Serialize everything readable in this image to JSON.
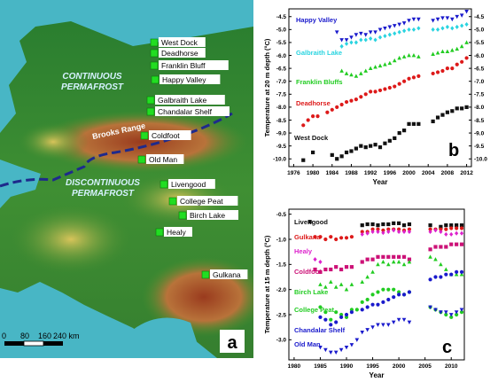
{
  "map": {
    "panel_label": "a",
    "continuous_label": [
      "CONTINUOUS",
      "PERMAFROST"
    ],
    "discontinuous_label": [
      "DISCONTINUOUS",
      "PERMAFROST"
    ],
    "range_label": "Brooks Range",
    "scale_ticks": [
      "0",
      "80",
      "160",
      "240 km"
    ],
    "colors": {
      "sea": "#48b6c5",
      "lowland": "#2e7d32",
      "upland": "#c9b54a",
      "mountain": "#8b2f1a",
      "site": "#22dd22",
      "boundary": "#1e2a8c"
    },
    "sites": [
      {
        "id": "west-dock",
        "name": "West Dock"
      },
      {
        "id": "deadhorse",
        "name": "Deadhorse"
      },
      {
        "id": "franklin-bluff",
        "name": "Franklin Bluff"
      },
      {
        "id": "happy-valley",
        "name": "Happy Valley"
      },
      {
        "id": "galbraith-lake",
        "name": "Galbraith Lake"
      },
      {
        "id": "chandalar-shelf",
        "name": "Chandalar Shelf"
      },
      {
        "id": "coldfoot",
        "name": "Coldfoot"
      },
      {
        "id": "old-man",
        "name": "Old Man"
      },
      {
        "id": "livengood",
        "name": "Livengood"
      },
      {
        "id": "college-peat",
        "name": "College Peat"
      },
      {
        "id": "birch-lake",
        "name": "Birch Lake"
      },
      {
        "id": "healy",
        "name": "Healy"
      },
      {
        "id": "gulkana",
        "name": "Gulkana"
      }
    ]
  },
  "chart_data": [
    {
      "type": "scatter",
      "panel_label": "b",
      "xlabel": "Year",
      "ylabel": "Temperature at 20 m depth (°C)",
      "xlim": [
        1975,
        2013
      ],
      "ylim": [
        -10.3,
        -4.2
      ],
      "xticks": [
        1976,
        1980,
        1984,
        1988,
        1992,
        1996,
        2000,
        2004,
        2008,
        2012
      ],
      "yticks": [
        -10.0,
        -9.5,
        -9.0,
        -8.5,
        -8.0,
        -7.5,
        -7.0,
        -6.5,
        -6.0,
        -5.5,
        -5.0,
        -4.5
      ],
      "ytick_labels": [
        "-10.0",
        "-9.5",
        "-9.0",
        "-8.5",
        "-8.0",
        "-7.5",
        "-7.0",
        "-6.5",
        "-6.0",
        "-5.5",
        "-5.0",
        "-4.5"
      ],
      "right_yticks": [
        -10.0,
        -9.5,
        -9.0,
        -8.5,
        -8.0,
        -7.5,
        -7.0,
        -6.5,
        -6.0,
        -5.5,
        -5.0,
        -4.5
      ],
      "right_ytick_labels": [
        "-10.0",
        "-9.5",
        "-9.0",
        "-8.5",
        "-8.0",
        "-7.5",
        "-7.0",
        "-6.5",
        "-6.0",
        "-5.5",
        "-5.0",
        "-4.5"
      ],
      "series": [
        {
          "name": "Happy Valley",
          "color": "#1a1acc",
          "marker": "triangle-down",
          "x": [
            1985,
            1986,
            1987,
            1988,
            1989,
            1990,
            1991,
            1992,
            1993,
            1994,
            1995,
            1996,
            1997,
            1998,
            1999,
            2000,
            2001,
            2002,
            2005,
            2006,
            2007,
            2008,
            2009,
            2010,
            2011,
            2012
          ],
          "y": [
            -5.1,
            -5.4,
            -5.4,
            -5.3,
            -5.2,
            -5.15,
            -5.2,
            -5.1,
            -5.1,
            -5.0,
            -4.95,
            -4.9,
            -4.85,
            -4.8,
            -4.75,
            -4.65,
            -4.6,
            -4.6,
            -4.65,
            -4.6,
            -4.55,
            -4.55,
            -4.6,
            -4.5,
            -4.45,
            -4.3
          ]
        },
        {
          "name": "Galbraith Lake",
          "color": "#2ad4e0",
          "marker": "diamond",
          "x": [
            1986,
            1987,
            1988,
            1989,
            1990,
            1991,
            1992,
            1993,
            1994,
            1995,
            1996,
            1997,
            1998,
            1999,
            2000,
            2001,
            2002,
            2005,
            2006,
            2007,
            2008,
            2009,
            2010,
            2011,
            2012
          ],
          "y": [
            -5.65,
            -5.55,
            -5.5,
            -5.5,
            -5.4,
            -5.4,
            -5.35,
            -5.4,
            -5.3,
            -5.25,
            -5.2,
            -5.15,
            -5.1,
            -5.05,
            -5.0,
            -5.0,
            -4.95,
            -5.0,
            -5.0,
            -4.95,
            -4.9,
            -4.95,
            -4.9,
            -4.85,
            -4.8
          ]
        },
        {
          "name": "Franklin Bluffs",
          "color": "#22cc22",
          "marker": "triangle-up",
          "x": [
            1986,
            1987,
            1988,
            1989,
            1990,
            1991,
            1992,
            1993,
            1994,
            1995,
            1996,
            1997,
            1998,
            1999,
            2000,
            2001,
            2002,
            2005,
            2006,
            2007,
            2008,
            2009,
            2010,
            2011,
            2012
          ],
          "y": [
            -6.6,
            -6.7,
            -6.75,
            -6.8,
            -6.7,
            -6.6,
            -6.5,
            -6.45,
            -6.4,
            -6.35,
            -6.3,
            -6.2,
            -6.1,
            -6.05,
            -6.0,
            -6.0,
            -6.05,
            -5.95,
            -5.9,
            -5.85,
            -5.85,
            -5.8,
            -5.75,
            -5.65,
            -5.5
          ]
        },
        {
          "name": "Deadhorse",
          "color": "#dd1a1a",
          "marker": "circle",
          "x": [
            1978,
            1979,
            1980,
            1981,
            1983,
            1984,
            1985,
            1986,
            1987,
            1988,
            1989,
            1990,
            1991,
            1992,
            1993,
            1994,
            1995,
            1996,
            1997,
            1998,
            1999,
            2000,
            2001,
            2002,
            2005,
            2006,
            2007,
            2008,
            2009,
            2010,
            2011,
            2012
          ],
          "y": [
            -8.7,
            -8.5,
            -8.35,
            -8.35,
            -8.2,
            -8.1,
            -8.0,
            -7.9,
            -7.8,
            -7.75,
            -7.7,
            -7.6,
            -7.5,
            -7.4,
            -7.4,
            -7.35,
            -7.3,
            -7.25,
            -7.2,
            -7.1,
            -7.0,
            -6.9,
            -6.85,
            -6.8,
            -6.7,
            -6.65,
            -6.6,
            -6.5,
            -6.5,
            -6.35,
            -6.25,
            -6.1
          ]
        },
        {
          "name": "West Dock",
          "color": "#111111",
          "marker": "square",
          "x": [
            1978,
            1980,
            1984,
            1985,
            1986,
            1987,
            1988,
            1989,
            1990,
            1991,
            1992,
            1993,
            1994,
            1995,
            1996,
            1997,
            1998,
            1999,
            2000,
            2001,
            2002,
            2005,
            2006,
            2007,
            2008,
            2009,
            2010,
            2011,
            2012
          ],
          "y": [
            -10.05,
            -9.75,
            -9.85,
            -10.0,
            -9.9,
            -9.75,
            -9.7,
            -9.6,
            -9.5,
            -9.55,
            -9.5,
            -9.45,
            -9.55,
            -9.4,
            -9.3,
            -9.2,
            -9.0,
            -8.9,
            -8.65,
            -8.65,
            -8.65,
            -8.55,
            -8.4,
            -8.3,
            -8.2,
            -8.15,
            -8.05,
            -8.05,
            -8.0
          ]
        }
      ]
    },
    {
      "type": "scatter",
      "panel_label": "c",
      "xlabel": "Year",
      "ylabel": "Temperature at 15 m depth (°C)",
      "xlim": [
        1979,
        2012.5
      ],
      "ylim": [
        -3.4,
        -0.4
      ],
      "xticks": [
        1980,
        1985,
        1990,
        1995,
        2000,
        2005,
        2010
      ],
      "yticks": [
        -3.0,
        -2.5,
        -2.0,
        -1.5,
        -1.0,
        -0.5
      ],
      "ytick_labels": [
        "-3.0",
        "-2.5",
        "-2.0",
        "-1.5",
        "-1.0",
        "-0.5"
      ],
      "series": [
        {
          "name": "Livengood",
          "color": "#111111",
          "marker": "square",
          "x": [
            1983,
            1993,
            1994,
            1995,
            1996,
            1997,
            1998,
            1999,
            2000,
            2001,
            2002,
            2006,
            2008,
            2009,
            2010,
            2011,
            2012
          ],
          "y": [
            -0.65,
            -0.72,
            -0.7,
            -0.7,
            -0.72,
            -0.7,
            -0.7,
            -0.68,
            -0.68,
            -0.72,
            -0.7,
            -0.72,
            -0.75,
            -0.72,
            -0.72,
            -0.72,
            -0.72
          ]
        },
        {
          "name": "Gulkana",
          "color": "#dd1a1a",
          "marker": "circle",
          "x": [
            1984,
            1985,
            1986,
            1987,
            1988,
            1989,
            1990,
            1991,
            1993,
            1994,
            1995,
            1996,
            1997,
            1998,
            1999,
            2000,
            2001,
            2002,
            2006,
            2007,
            2008,
            2009,
            2010,
            2011,
            2012
          ],
          "y": [
            -0.95,
            -0.95,
            -1.0,
            -0.95,
            -1.0,
            -0.97,
            -0.97,
            -0.95,
            -0.85,
            -0.85,
            -0.8,
            -0.8,
            -0.82,
            -0.8,
            -0.8,
            -0.8,
            -0.82,
            -0.8,
            -0.8,
            -0.8,
            -0.8,
            -0.8,
            -0.78,
            -0.78,
            -0.78
          ]
        },
        {
          "name": "Healy",
          "color": "#dd22cc",
          "marker": "diamond",
          "x": [
            1984,
            1985,
            1993,
            1994,
            1995,
            1996,
            1997,
            1998,
            1999,
            2000,
            2001,
            2002,
            2006,
            2007,
            2008,
            2009,
            2010,
            2011,
            2012
          ],
          "y": [
            -1.4,
            -1.45,
            -0.9,
            -0.88,
            -0.85,
            -0.85,
            -0.87,
            -0.85,
            -0.82,
            -0.85,
            -0.85,
            -0.85,
            -0.85,
            -0.82,
            -0.85,
            -0.9,
            -0.9,
            -0.88,
            -0.88
          ]
        },
        {
          "name": "Coldfoot",
          "color": "#cc1177",
          "marker": "square",
          "x": [
            1984,
            1985,
            1986,
            1987,
            1988,
            1989,
            1990,
            1991,
            1993,
            1994,
            1995,
            1996,
            1997,
            1998,
            1999,
            2000,
            2001,
            2002,
            2006,
            2007,
            2008,
            2009,
            2010,
            2011,
            2012
          ],
          "y": [
            -1.6,
            -1.65,
            -1.6,
            -1.6,
            -1.55,
            -1.6,
            -1.55,
            -1.55,
            -1.45,
            -1.4,
            -1.4,
            -1.35,
            -1.35,
            -1.35,
            -1.35,
            -1.35,
            -1.35,
            -1.4,
            -1.2,
            -1.15,
            -1.15,
            -1.15,
            -1.1,
            -1.1,
            -1.1
          ]
        },
        {
          "name": "Birch Lake",
          "color": "#22cc22",
          "marker": "triangle-up",
          "x": [
            1985,
            1986,
            1987,
            1988,
            1989,
            1990,
            1991,
            1993,
            1994,
            1995,
            1996,
            1997,
            1998,
            1999,
            2000,
            2001,
            2002,
            2006,
            2007,
            2008,
            2009,
            2010,
            2011,
            2012
          ],
          "y": [
            -1.9,
            -1.95,
            -1.85,
            -1.95,
            -1.9,
            -2.0,
            -1.9,
            -1.85,
            -1.75,
            -1.65,
            -1.5,
            -1.45,
            -1.5,
            -1.45,
            -1.45,
            -1.5,
            -1.45,
            -1.35,
            -1.4,
            -1.5,
            -1.6,
            -1.7,
            -1.7,
            -1.7
          ]
        },
        {
          "name": "College Peat",
          "color": "#22cc22",
          "marker": "circle",
          "x": [
            1985,
            1986,
            1987,
            1988,
            1989,
            1990,
            1991,
            1992,
            1993,
            1994,
            1995,
            1996,
            1997,
            1998,
            1999,
            2000,
            2001,
            2002,
            2006,
            2007,
            2008,
            2009,
            2010,
            2011,
            2012
          ],
          "y": [
            -2.35,
            -2.45,
            -2.6,
            -2.45,
            -2.5,
            -2.55,
            -2.4,
            -2.4,
            -2.25,
            -2.2,
            -2.1,
            -2.05,
            -2.0,
            -2.0,
            -2.0,
            -2.05,
            -2.1,
            -2.05,
            -2.35,
            -2.4,
            -2.45,
            -2.5,
            -2.55,
            -2.5,
            -2.45
          ]
        },
        {
          "name": "Chandalar Shelf",
          "color": "#1a1acc",
          "marker": "circle",
          "x": [
            1985,
            1986,
            1987,
            1988,
            1989,
            1990,
            1991,
            1993,
            1994,
            1995,
            1996,
            1997,
            1998,
            1999,
            2000,
            2001,
            2002,
            2006,
            2007,
            2008,
            2009,
            2010,
            2011,
            2012
          ],
          "y": [
            -2.55,
            -2.6,
            -2.7,
            -2.65,
            -2.55,
            -2.5,
            -2.45,
            -2.4,
            -2.35,
            -2.3,
            -2.3,
            -2.25,
            -2.2,
            -2.15,
            -2.1,
            -2.1,
            -2.05,
            -1.8,
            -1.75,
            -1.75,
            -1.7,
            -1.7,
            -1.65,
            -1.65
          ]
        },
        {
          "name": "Old Man",
          "color": "#1a1acc",
          "marker": "triangle-down",
          "x": [
            1985,
            1986,
            1987,
            1988,
            1989,
            1990,
            1991,
            1992,
            1993,
            1994,
            1995,
            1996,
            1997,
            1998,
            1999,
            2000,
            2001,
            2002,
            2006,
            2007,
            2008,
            2009,
            2010,
            2011,
            2012
          ],
          "y": [
            -3.15,
            -3.2,
            -3.25,
            -3.25,
            -3.2,
            -3.15,
            -3.1,
            -3.0,
            -2.85,
            -2.8,
            -2.75,
            -2.7,
            -2.7,
            -2.7,
            -2.65,
            -2.6,
            -2.6,
            -2.65,
            -2.35,
            -2.4,
            -2.45,
            -2.45,
            -2.5,
            -2.45,
            -2.4
          ]
        }
      ]
    }
  ]
}
